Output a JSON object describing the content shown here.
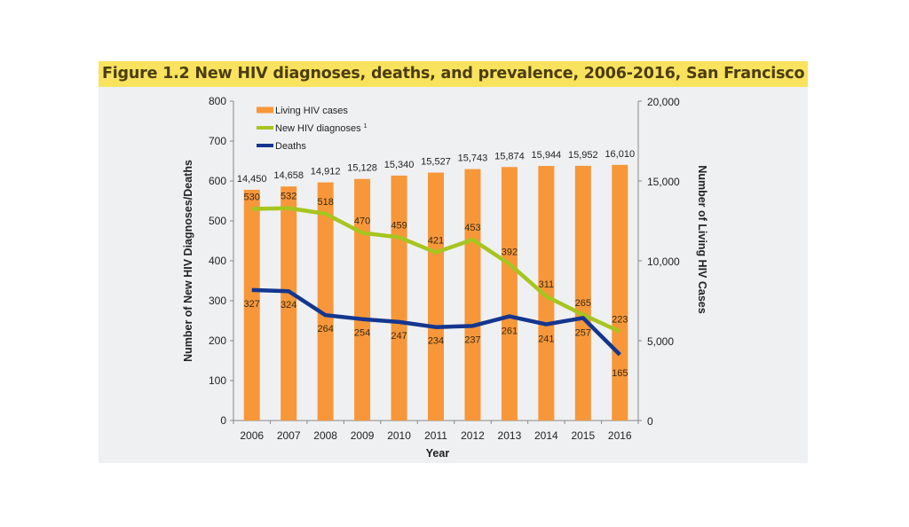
{
  "title": "Figure 1.2  New HIV diagnoses, deaths, and prevalence, 2006-2016, San Francisco",
  "colors": {
    "title_bar": "#f9e35e",
    "title_text": "#4b3d10",
    "panel_bg": "#eff0f2",
    "bars": "#f7973a",
    "diagnoses_line": "#a6c51f",
    "deaths_line": "#14368f",
    "axis": "#888888"
  },
  "chart_data": {
    "type": "bar",
    "title": "Figure 1.2  New HIV diagnoses, deaths, and prevalence, 2006-2016, San Francisco",
    "xlabel": "Year",
    "ylabel": "Number of New HIV Diagnoses/Deaths",
    "y2label": "Number of Living HIV Cases",
    "categories": [
      "2006",
      "2007",
      "2008",
      "2009",
      "2010",
      "2011",
      "2012",
      "2013",
      "2014",
      "2015",
      "2016"
    ],
    "ylim": [
      0,
      800
    ],
    "y_ticks": [
      "0",
      "100",
      "200",
      "300",
      "400",
      "500",
      "600",
      "700",
      "800"
    ],
    "y2lim": [
      0,
      20000
    ],
    "y2_ticks": [
      "0",
      "5,000",
      "10,000",
      "15,000",
      "20,000"
    ],
    "grid": false,
    "legend_position": "top-left",
    "series": [
      {
        "name": "Living HIV cases",
        "type": "bar",
        "axis": "right",
        "values": [
          14450,
          14658,
          14912,
          15128,
          15340,
          15527,
          15743,
          15874,
          15944,
          15952,
          16010
        ],
        "labels": [
          "14,450",
          "14,658",
          "14,912",
          "15,128",
          "15,340",
          "15,527",
          "15,743",
          "15,874",
          "15,944",
          "15,952",
          "16,010"
        ]
      },
      {
        "name": "New HIV diagnoses",
        "superscript": "1",
        "type": "line",
        "axis": "left",
        "values": [
          530,
          532,
          518,
          470,
          459,
          421,
          453,
          392,
          311,
          265,
          223
        ],
        "labels": [
          "530",
          "532",
          "518",
          "470",
          "459",
          "421",
          "453",
          "392",
          "311",
          "265",
          "223"
        ]
      },
      {
        "name": "Deaths",
        "type": "line",
        "axis": "left",
        "values": [
          327,
          324,
          264,
          254,
          247,
          234,
          237,
          261,
          241,
          257,
          165
        ],
        "labels": [
          "327",
          "324",
          "264",
          "254",
          "247",
          "234",
          "237",
          "261",
          "241",
          "257",
          "165"
        ]
      }
    ]
  }
}
